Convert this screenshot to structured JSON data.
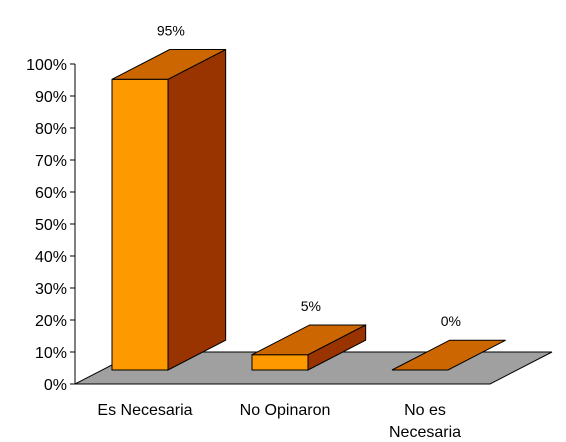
{
  "chart_data": {
    "type": "bar",
    "style": "3d-column",
    "categories": [
      "Es Necesaria",
      "No Opinaron",
      "No es Necesaria"
    ],
    "category_lines": [
      [
        "Es Necesaria"
      ],
      [
        "No Opinaron"
      ],
      [
        "No es",
        "Necesaria"
      ]
    ],
    "values": [
      95,
      5,
      0
    ],
    "data_labels": [
      "95%",
      "5%",
      "0%"
    ],
    "y_ticks": [
      "0%",
      "10%",
      "20%",
      "30%",
      "40%",
      "50%",
      "60%",
      "70%",
      "80%",
      "90%",
      "100%"
    ],
    "ylim": [
      0,
      100
    ],
    "title": "",
    "xlabel": "",
    "ylabel": "",
    "grid": false,
    "legend": "none",
    "colors": {
      "bar_front": "#FF9900",
      "bar_top": "#CC6600",
      "bar_side": "#993300",
      "floor": "#A0A0A0",
      "outline": "#000000"
    }
  }
}
